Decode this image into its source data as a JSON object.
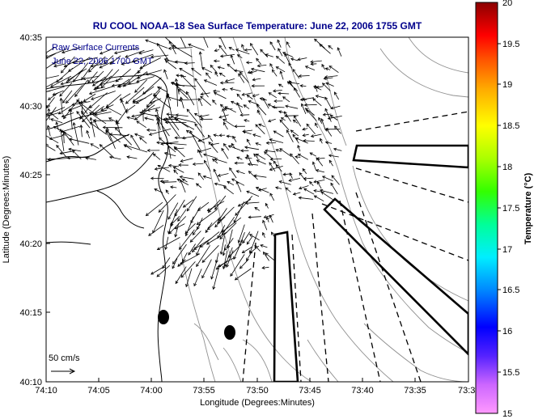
{
  "title": "RU COOL   NOAA–18  Sea Surface Temperature:  June 22, 2006 1755 GMT",
  "annotation_line1": "Raw Surface Currents",
  "annotation_line2": "June 22, 2006 1700 GMT",
  "scale_label": "50 cm/s",
  "xlabel": "Longitude (Degrees:Minutes)",
  "ylabel": "Latitude (Degrees:Minutes)",
  "colorbar_label": "Temperature (°C)",
  "x_ticks": [
    "74:10",
    "74:05",
    "74:00",
    "73:55",
    "73:50",
    "73:45",
    "73:40",
    "73:35",
    "73:3"
  ],
  "y_ticks": [
    "40:35",
    "40:30",
    "40:25",
    "40:20",
    "40:15",
    "40:10"
  ],
  "colorbar_ticks": [
    "20",
    "19.5",
    "19",
    "18.5",
    "18",
    "17.5",
    "17",
    "16.5",
    "16",
    "15.5",
    "15"
  ],
  "colors": {
    "title": "#00008b",
    "annotation": "#00008b",
    "land_outline": "#000000",
    "bathymetry": "#808080",
    "vectors": "#000000"
  },
  "chart_data": {
    "type": "map",
    "title": "RU COOL   NOAA–18  Sea Surface Temperature:  June 22, 2006 1755 GMT",
    "xlabel": "Longitude (Degrees:Minutes)",
    "ylabel": "Latitude (Degrees:Minutes)",
    "lon_range_min": [
      -74.1667,
      -73.5
    ],
    "lat_range_deg": [
      40.1667,
      40.5833
    ],
    "colorbar": {
      "label": "Temperature (°C)",
      "range": [
        15,
        20
      ]
    },
    "black_dots": [
      {
        "lon": -73.98,
        "lat": 40.2467
      },
      {
        "lon": -73.87,
        "lat": 40.2283
      }
    ]
  }
}
